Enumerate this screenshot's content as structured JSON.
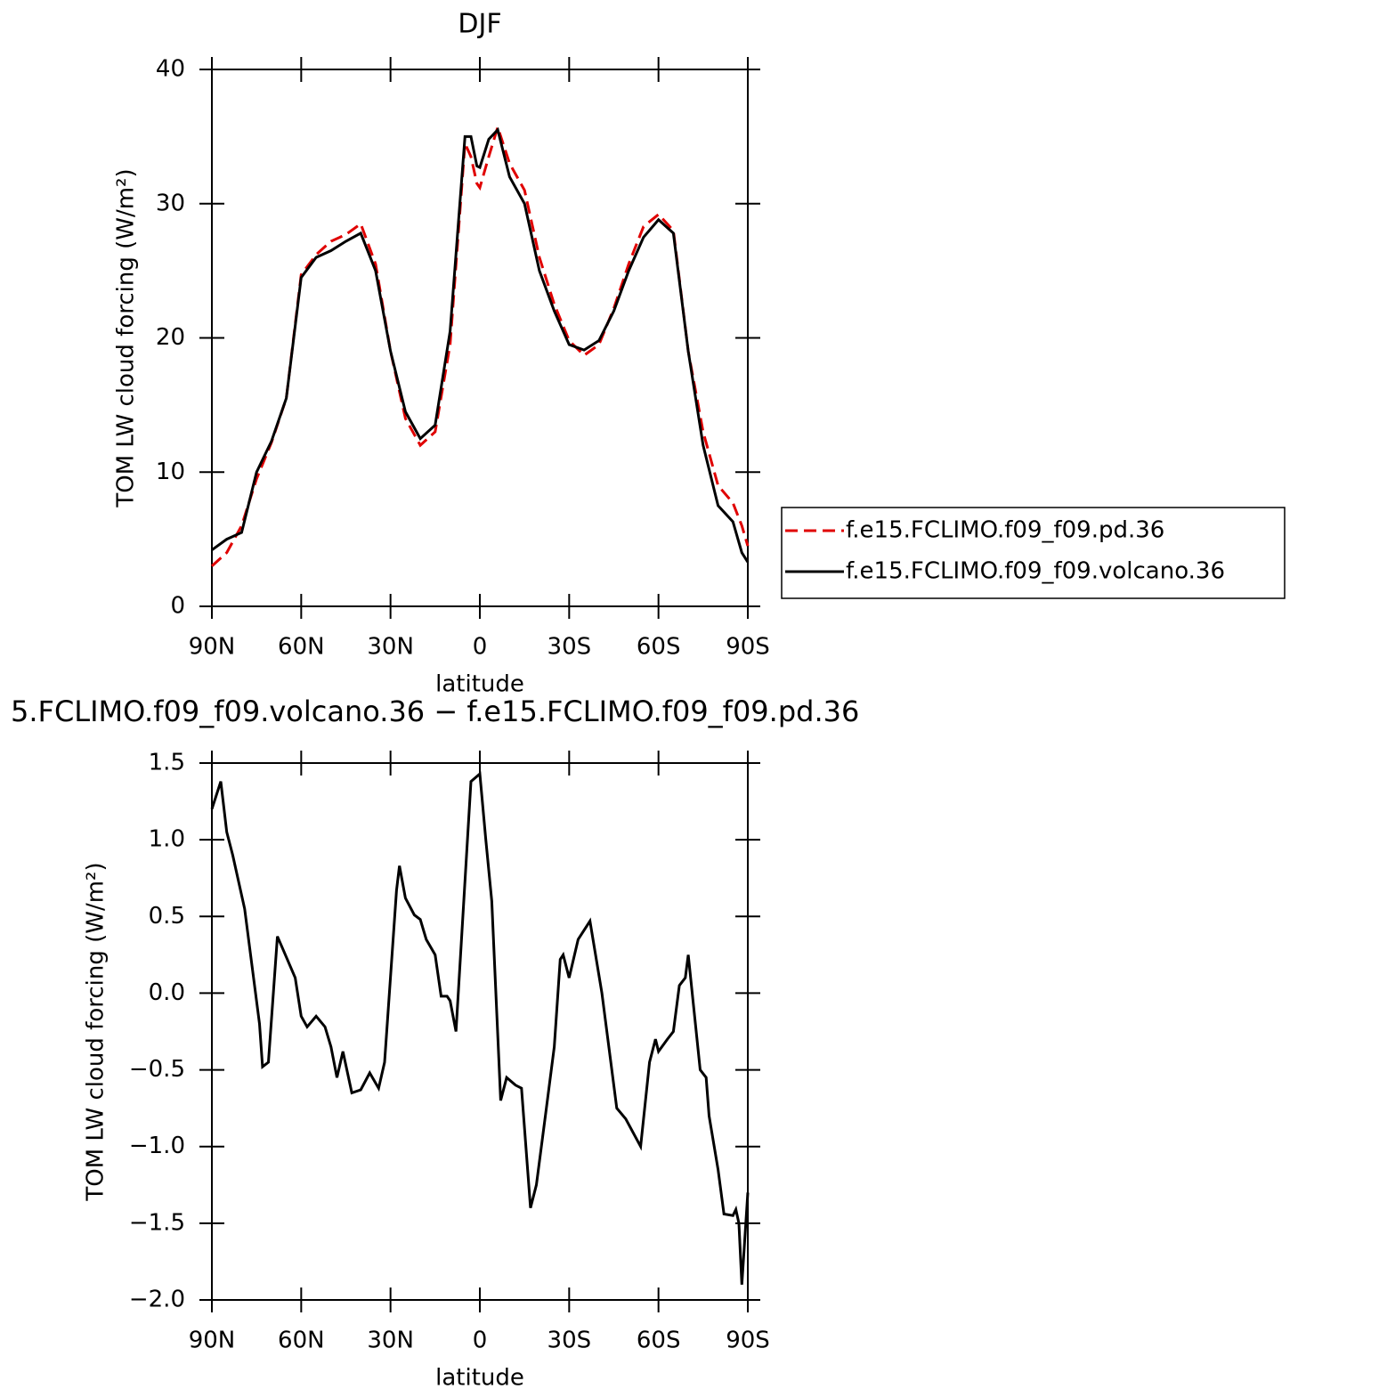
{
  "chart_data": [
    {
      "type": "line",
      "title": "DJF",
      "xlabel": "latitude",
      "ylabel": "TOM LW cloud forcing (W/m²)",
      "x": [
        90,
        85,
        80,
        75,
        70,
        65,
        60,
        55,
        50,
        45,
        40,
        35,
        30,
        25,
        20,
        15,
        10,
        5,
        3,
        1,
        0,
        -3,
        -6,
        -10,
        -15,
        -20,
        -25,
        -30,
        -35,
        -40,
        -45,
        -50,
        -55,
        -60,
        -65,
        -70,
        -75,
        -80,
        -85,
        -88,
        -90
      ],
      "xlim": [
        90,
        -90
      ],
      "xticks": [
        {
          "value": 90,
          "label": "90N"
        },
        {
          "value": 60,
          "label": "60N"
        },
        {
          "value": 30,
          "label": "30N"
        },
        0,
        {
          "value": -30,
          "label": "30S"
        },
        {
          "value": -60,
          "label": "60S"
        },
        {
          "value": -90,
          "label": "90S"
        }
      ],
      "ylim": [
        0,
        40
      ],
      "yticks": [
        0,
        10,
        20,
        30,
        40
      ],
      "legend": "outside-right",
      "series": [
        {
          "name": "f.e15.FCLIMO.f09_f09.pd.36",
          "color": "#e00000",
          "line_style": "dashed",
          "values": [
            3.0,
            4.0,
            6.0,
            9.5,
            12.2,
            15.5,
            24.7,
            26.2,
            27.2,
            27.7,
            28.5,
            25.5,
            19.0,
            14.0,
            12.0,
            13.0,
            19.5,
            34.5,
            33.5,
            31.5,
            31.2,
            33.5,
            35.7,
            33.0,
            31.0,
            26.0,
            22.5,
            19.8,
            18.7,
            19.5,
            22.2,
            25.5,
            28.3,
            29.2,
            28.0,
            19.0,
            13.0,
            9.0,
            7.7,
            6.0,
            4.5
          ]
        },
        {
          "name": "f.e15.FCLIMO.f09_f09.volcano.36",
          "color": "#000000",
          "line_style": "solid",
          "values": [
            4.2,
            5.0,
            5.5,
            10.0,
            12.3,
            15.5,
            24.5,
            26.0,
            26.5,
            27.2,
            27.8,
            25.0,
            19.0,
            14.5,
            12.5,
            13.5,
            20.5,
            35.0,
            35.0,
            32.8,
            32.7,
            34.8,
            35.5,
            32.0,
            30.0,
            25.0,
            22.0,
            19.5,
            19.1,
            19.8,
            22.0,
            25.0,
            27.5,
            28.8,
            27.8,
            19.0,
            12.0,
            7.5,
            6.3,
            4.0,
            3.3
          ]
        }
      ]
    },
    {
      "type": "line",
      "title": "5.FCLIMO.f09_f09.volcano.36 − f.e15.FCLIMO.f09_f09.pd.36",
      "xlabel": "latitude",
      "ylabel": "TOM LW cloud forcing (W/m²)",
      "x": [
        90,
        87,
        85,
        83,
        79,
        74,
        73,
        71,
        68,
        66,
        62,
        60,
        58,
        55,
        52,
        50,
        48,
        46,
        43,
        40,
        37,
        34,
        32,
        28,
        27,
        25,
        22,
        20,
        18,
        15,
        13,
        11,
        10,
        8,
        6,
        3,
        0,
        -2,
        -4,
        -7,
        -9,
        -12,
        -14,
        -17,
        -19,
        -22,
        -25,
        -27,
        -28,
        -30,
        -33,
        -37,
        -41,
        -46,
        -49,
        -54,
        -57,
        -59,
        -60,
        -63,
        -65,
        -67,
        -69,
        -70,
        -74,
        -76,
        -77,
        -80,
        -82,
        -85,
        -86,
        -87,
        -88,
        -90
      ],
      "xlim": [
        90,
        -90
      ],
      "xticks": [
        {
          "value": 90,
          "label": "90N"
        },
        {
          "value": 60,
          "label": "60N"
        },
        {
          "value": 30,
          "label": "30N"
        },
        0,
        {
          "value": -30,
          "label": "30S"
        },
        {
          "value": -60,
          "label": "60S"
        },
        {
          "value": -90,
          "label": "90S"
        }
      ],
      "ylim": [
        -2.0,
        1.5
      ],
      "yticks": [
        1.5,
        {
          "value": 1.0,
          "label": "1.0"
        },
        0.5,
        {
          "value": 0.0,
          "label": "0.0"
        },
        {
          "value": -0.5,
          "label": "−0.5"
        },
        {
          "value": -1.0,
          "label": "−1.0"
        },
        {
          "value": -1.5,
          "label": "−1.5"
        },
        {
          "value": -2.0,
          "label": "−2.0"
        }
      ],
      "series": [
        {
          "color": "#000000",
          "line_style": "solid",
          "values": [
            1.2,
            1.38,
            1.05,
            0.9,
            0.55,
            -0.2,
            -0.48,
            -0.45,
            0.37,
            0.28,
            0.1,
            -0.15,
            -0.22,
            -0.15,
            -0.22,
            -0.35,
            -0.55,
            -0.38,
            -0.65,
            -0.63,
            -0.52,
            -0.62,
            -0.45,
            0.67,
            0.83,
            0.62,
            0.51,
            0.48,
            0.35,
            0.25,
            -0.02,
            -0.02,
            -0.05,
            -0.25,
            0.4,
            1.38,
            1.43,
            1.0,
            0.6,
            -0.7,
            -0.55,
            -0.6,
            -0.62,
            -1.4,
            -1.25,
            -0.8,
            -0.35,
            0.22,
            0.25,
            0.1,
            0.35,
            0.47,
            0.0,
            -0.75,
            -0.82,
            -1.0,
            -0.45,
            -0.3,
            -0.38,
            -0.3,
            -0.25,
            0.05,
            0.1,
            0.25,
            -0.5,
            -0.55,
            -0.8,
            -1.15,
            -1.44,
            -1.45,
            -1.41,
            -1.5,
            -1.9,
            -1.3
          ]
        }
      ]
    }
  ]
}
